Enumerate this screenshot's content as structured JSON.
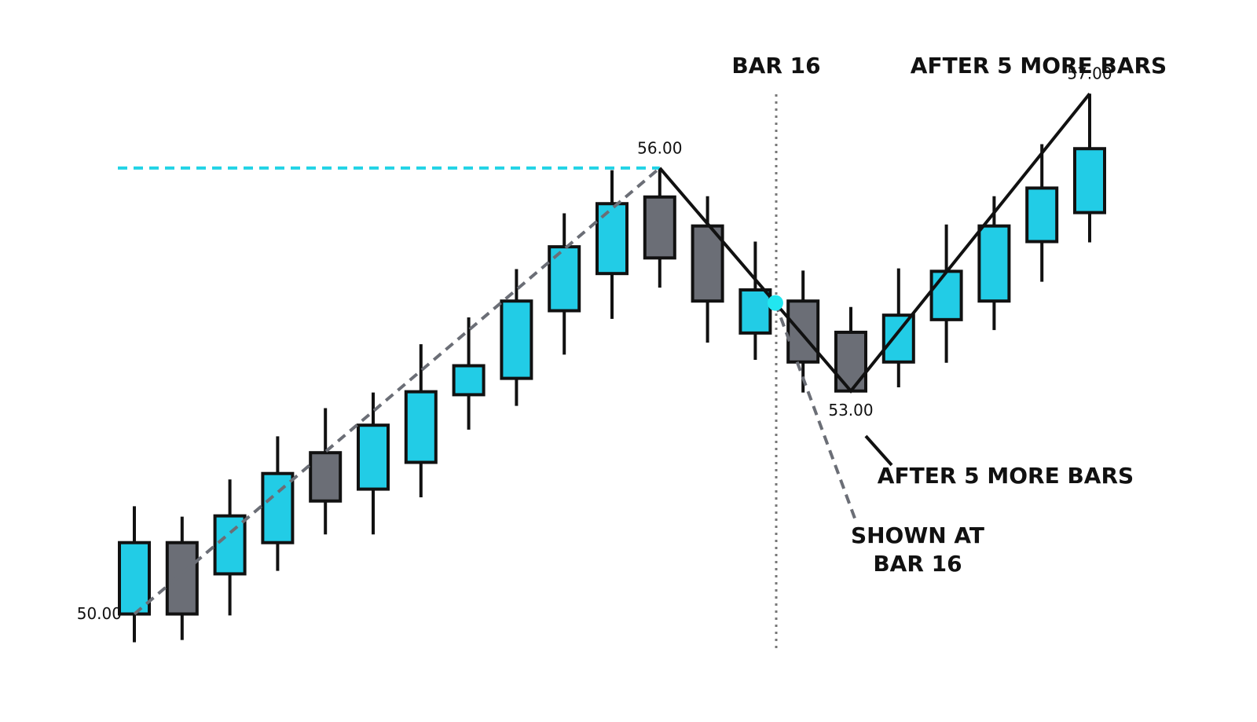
{
  "chart_data": {
    "type": "candlestick",
    "ylim": [
      48.6,
      58.26
    ],
    "up_color": "#22cce6",
    "down_color": "#6b6e76",
    "open": [
      50.0,
      50.96,
      50.54,
      50.96,
      52.17,
      51.68,
      52.04,
      52.95,
      53.17,
      54.08,
      54.58,
      55.61,
      55.22,
      53.78,
      54.21,
      53.79,
      53.39,
      53.96,
      54.21,
      55.01,
      55.4
    ],
    "high": [
      51.45,
      51.31,
      51.81,
      52.39,
      52.77,
      52.98,
      53.63,
      53.99,
      54.64,
      55.39,
      55.97,
      56.0,
      55.62,
      55.01,
      54.62,
      54.13,
      54.65,
      55.24,
      55.62,
      56.32,
      57.0
    ],
    "low": [
      49.62,
      49.65,
      49.98,
      50.58,
      51.07,
      51.07,
      51.57,
      52.48,
      52.8,
      53.49,
      53.97,
      54.39,
      53.65,
      53.42,
      52.98,
      53.0,
      53.05,
      53.38,
      53.82,
      54.47,
      55.0
    ],
    "close": [
      50.96,
      50.0,
      51.32,
      51.89,
      51.52,
      52.54,
      52.99,
      53.34,
      54.21,
      54.94,
      55.52,
      54.79,
      54.21,
      54.36,
      53.39,
      53.0,
      54.02,
      54.61,
      55.22,
      55.73,
      56.26
    ],
    "pivots": {
      "x": [
        0,
        11,
        15,
        20
      ],
      "values": [
        50,
        56,
        53,
        57
      ],
      "value_labels": [
        "50.00",
        "56.00",
        "53.00",
        "57.00"
      ]
    },
    "annotations": [
      "BAR 16",
      "AFTER 5 MORE BARS",
      "AFTER 5 MORE BARS",
      "SHOWN AT",
      "BAR 16"
    ]
  }
}
